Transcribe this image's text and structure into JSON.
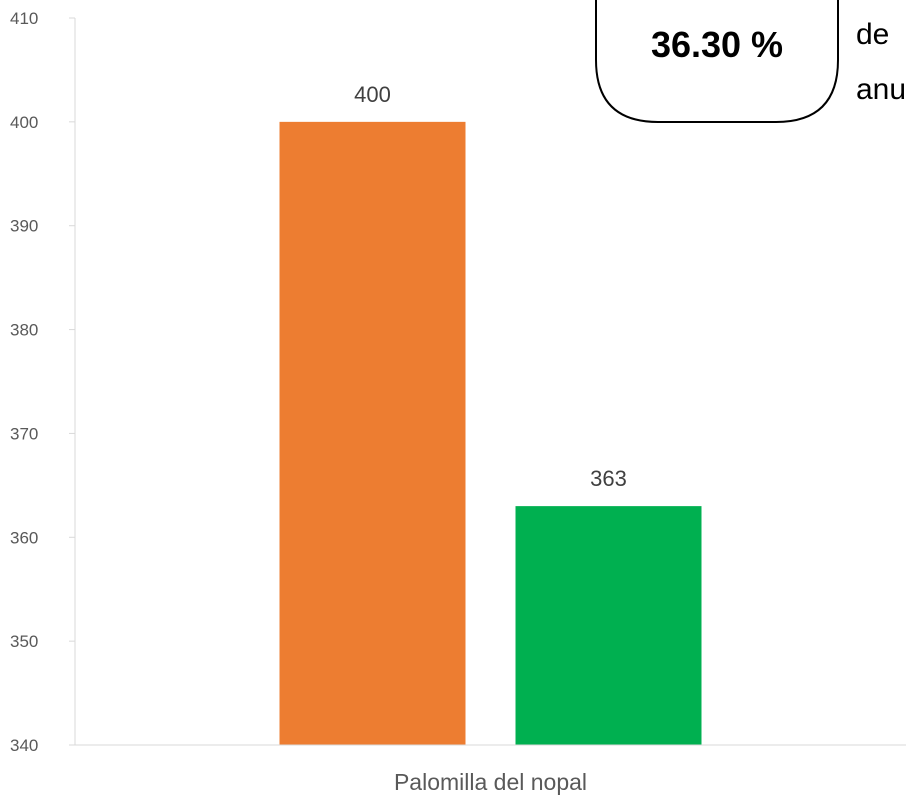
{
  "chart_data": {
    "type": "bar",
    "categories": [
      "Palomilla del nopal"
    ],
    "series": [
      {
        "values": [
          400
        ],
        "color": "#ED7D31"
      },
      {
        "values": [
          363
        ],
        "color": "#00B050"
      }
    ],
    "data_labels": [
      "400",
      "363"
    ],
    "ylim": [
      340,
      410
    ],
    "yticks": [
      340,
      350,
      360,
      370,
      380,
      390,
      400,
      410
    ],
    "grid": false,
    "annotations": {
      "callout_value": "36.30 %",
      "callout_text_lines": [
        "de",
        "anu"
      ]
    }
  }
}
